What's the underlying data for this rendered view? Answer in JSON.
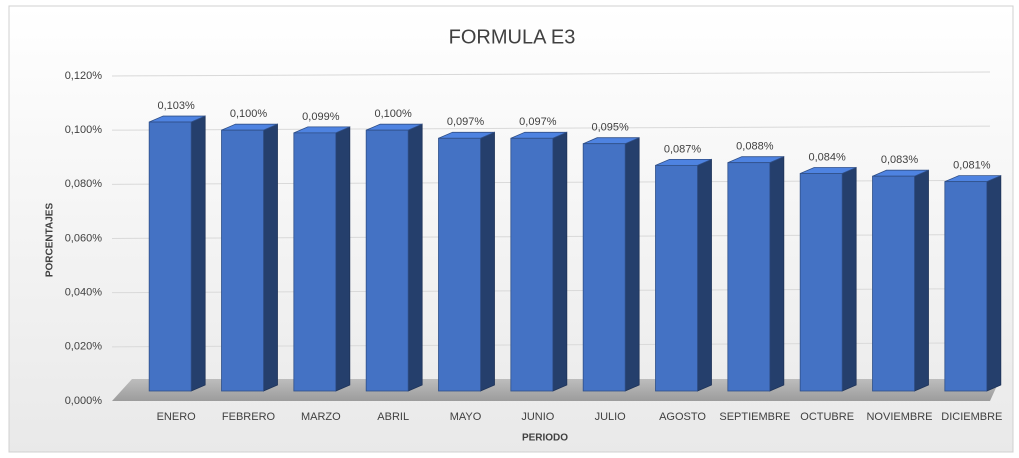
{
  "chart_data": {
    "type": "bar3d",
    "title": "FORMULA E3",
    "x_label": "PERIODO",
    "y_label": "PORCENTAJES",
    "categories": [
      "ENERO",
      "FEBRERO",
      "MARZO",
      "ABRIL",
      "MAYO",
      "JUNIO",
      "JULIO",
      "AGOSTO",
      "SEPTIEMBRE",
      "OCTUBRE",
      "NOVIEMBRE",
      "DICIEMBRE"
    ],
    "values": [
      0.103,
      0.1,
      0.099,
      0.1,
      0.097,
      0.097,
      0.095,
      0.087,
      0.088,
      0.084,
      0.083,
      0.081
    ],
    "value_labels": [
      "0,103%",
      "0,100%",
      "0,099%",
      "0,100%",
      "0,097%",
      "0,097%",
      "0,095%",
      "0,087%",
      "0,088%",
      "0,084%",
      "0,083%",
      "0,081%"
    ],
    "color": "#4472c4",
    "ylim": [
      0,
      0.12
    ],
    "yticks": [
      {
        "value": 0,
        "label": "0,000%"
      },
      {
        "value": 0.02,
        "label": "0,020%"
      },
      {
        "value": 0.04,
        "label": "0,040%"
      },
      {
        "value": 0.06,
        "label": "0,060%"
      },
      {
        "value": 0.08,
        "label": "0,080%"
      },
      {
        "value": 0.1,
        "label": "0,100%"
      },
      {
        "value": 0.12,
        "label": "0,120%"
      }
    ],
    "grid": true
  }
}
